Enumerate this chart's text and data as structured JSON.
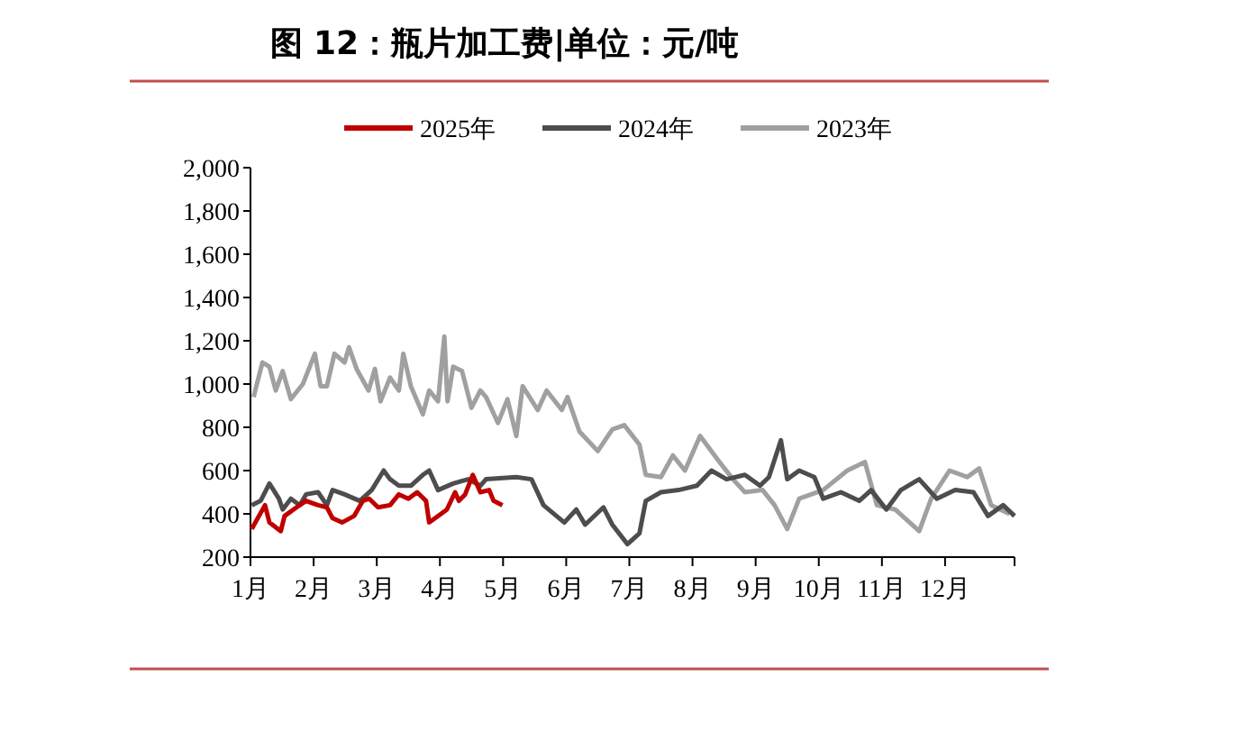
{
  "chart_data": {
    "type": "line",
    "title": "图 12：瓶片加工费|单位：元/吨",
    "legend": "top",
    "marker": "none",
    "line_style": "solid",
    "grid": false,
    "xlim": [
      1,
      13.1
    ],
    "xticks": [
      {
        "value": 1,
        "label": "1月"
      },
      {
        "value": 2,
        "label": "2月"
      },
      {
        "value": 3,
        "label": "3月"
      },
      {
        "value": 4,
        "label": "4月"
      },
      {
        "value": 5,
        "label": "5月"
      },
      {
        "value": 6,
        "label": "6月"
      },
      {
        "value": 7,
        "label": "7月"
      },
      {
        "value": 8,
        "label": "8月"
      },
      {
        "value": 9,
        "label": "9月"
      },
      {
        "value": 10,
        "label": "10月"
      },
      {
        "value": 11,
        "label": "11月"
      },
      {
        "value": 12,
        "label": "12月"
      },
      {
        "value": 13.1,
        "label": null
      }
    ],
    "ylim": [
      200,
      2000
    ],
    "yticks": [
      {
        "value": 200,
        "label": "200"
      },
      {
        "value": 400,
        "label": "400"
      },
      {
        "value": 600,
        "label": "600"
      },
      {
        "value": 800,
        "label": "800"
      },
      {
        "value": 1000,
        "label": "1,000"
      },
      {
        "value": 1200,
        "label": "1,200"
      },
      {
        "value": 1400,
        "label": "1,400"
      },
      {
        "value": 1600,
        "label": "1,600"
      },
      {
        "value": 1800,
        "label": "1,800"
      },
      {
        "value": 2000,
        "label": "2,000"
      }
    ],
    "series": [
      {
        "name": "2025年",
        "color": "#c00000",
        "x": [
          1.02,
          1.23,
          1.3,
          1.48,
          1.54,
          1.73,
          1.88,
          2.07,
          2.21,
          2.3,
          2.45,
          2.64,
          2.78,
          2.88,
          3.02,
          3.21,
          3.35,
          3.5,
          3.64,
          3.78,
          3.83,
          3.97,
          4.11,
          4.24,
          4.3,
          4.4,
          4.52,
          4.64,
          4.78,
          4.85,
          4.99
        ],
        "values": [
          330,
          440,
          360,
          320,
          390,
          430,
          460,
          440,
          430,
          380,
          360,
          390,
          460,
          470,
          430,
          440,
          490,
          470,
          500,
          460,
          360,
          390,
          420,
          500,
          460,
          490,
          580,
          500,
          510,
          460,
          440
        ]
      },
      {
        "name": "2024年",
        "color": "#4d4d4d",
        "x": [
          1.02,
          1.16,
          1.3,
          1.45,
          1.51,
          1.64,
          1.78,
          1.88,
          2.07,
          2.21,
          2.3,
          2.49,
          2.73,
          2.92,
          3.11,
          3.21,
          3.35,
          3.54,
          3.73,
          3.83,
          3.97,
          4.21,
          4.45,
          4.64,
          4.73,
          5.21,
          5.45,
          5.64,
          5.97,
          6.16,
          6.3,
          6.59,
          6.73,
          6.97,
          7.16,
          7.26,
          7.5,
          7.78,
          8.07,
          8.3,
          8.54,
          8.83,
          9.07,
          9.21,
          9.4,
          9.5,
          9.69,
          9.93,
          10.07,
          10.35,
          10.64,
          10.83,
          11.07,
          11.3,
          11.59,
          11.87,
          12.16,
          12.45,
          12.68,
          12.92,
          13.1
        ],
        "values": [
          440,
          460,
          540,
          470,
          420,
          470,
          440,
          490,
          500,
          440,
          510,
          490,
          460,
          510,
          600,
          560,
          530,
          530,
          580,
          600,
          510,
          540,
          560,
          530,
          560,
          570,
          560,
          440,
          360,
          420,
          350,
          430,
          350,
          260,
          310,
          460,
          500,
          510,
          530,
          600,
          560,
          580,
          530,
          570,
          740,
          560,
          600,
          570,
          470,
          500,
          460,
          510,
          420,
          510,
          560,
          470,
          510,
          500,
          390,
          440,
          390
        ]
      },
      {
        "name": "2023年",
        "color": "#a0a0a0",
        "x": [
          1.05,
          1.11,
          1.19,
          1.3,
          1.4,
          1.51,
          1.64,
          1.83,
          2.02,
          2.11,
          2.21,
          2.33,
          2.49,
          2.56,
          2.68,
          2.87,
          2.97,
          3.06,
          3.21,
          3.35,
          3.42,
          3.54,
          3.73,
          3.83,
          3.97,
          4.07,
          4.12,
          4.21,
          4.35,
          4.5,
          4.64,
          4.73,
          4.92,
          5.07,
          5.21,
          5.31,
          5.55,
          5.69,
          5.93,
          6.02,
          6.21,
          6.5,
          6.73,
          6.92,
          7.16,
          7.26,
          7.5,
          7.69,
          7.88,
          8.12,
          8.4,
          8.64,
          8.83,
          9.11,
          9.3,
          9.5,
          9.69,
          10.07,
          10.45,
          10.73,
          10.92,
          11.21,
          11.59,
          11.78,
          12.07,
          12.35,
          12.54,
          12.73,
          13.02
        ],
        "values": [
          940,
          1010,
          1100,
          1080,
          970,
          1060,
          930,
          1000,
          1140,
          990,
          990,
          1140,
          1100,
          1170,
          1070,
          970,
          1070,
          920,
          1030,
          970,
          1140,
          990,
          860,
          970,
          920,
          1220,
          920,
          1080,
          1060,
          890,
          970,
          940,
          820,
          930,
          760,
          990,
          880,
          970,
          880,
          940,
          780,
          690,
          790,
          810,
          720,
          580,
          570,
          670,
          600,
          760,
          650,
          560,
          500,
          510,
          440,
          330,
          470,
          510,
          600,
          640,
          440,
          420,
          320,
          470,
          600,
          570,
          610,
          440,
          400
        ]
      }
    ]
  }
}
